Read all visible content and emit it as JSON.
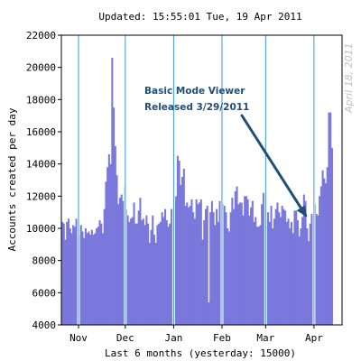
{
  "chart_data": {
    "type": "bar",
    "title": "Updated: 15:55:01 Tue, 19 Apr 2011",
    "xlabel": "Last 6 months (yesterday: 15000)",
    "ylabel": "Accounts created per day",
    "ylim": [
      4000,
      22000
    ],
    "yticks": [
      4000,
      6000,
      8000,
      10000,
      12000,
      14000,
      16000,
      18000,
      20000,
      22000
    ],
    "xlim": [
      "2010-10-21",
      "2011-04-18"
    ],
    "month_ticks": [
      {
        "label": "Nov",
        "date": "2010-11-01"
      },
      {
        "label": "Dec",
        "date": "2010-12-01"
      },
      {
        "label": "Jan",
        "date": "2011-01-01"
      },
      {
        "label": "Feb",
        "date": "2011-02-01"
      },
      {
        "label": "Mar",
        "date": "2011-03-01"
      },
      {
        "label": "Apr",
        "date": "2011-04-01"
      }
    ],
    "colors": {
      "bar": "#7b78dc",
      "month_line": "#3a9ad0",
      "annotation": "#1f4e79",
      "watermark": "#b9c2cf"
    },
    "annotation": {
      "lines": [
        "Basic Mode Viewer",
        "Released 3/29/2011"
      ],
      "target_date": "2011-03-29",
      "target_value": 10800
    },
    "watermark_text": "April 18, 2011",
    "start_date": "2010-10-21",
    "values": [
      10400,
      10300,
      9300,
      10400,
      10600,
      10000,
      9700,
      10200,
      10100,
      10600,
      10400,
      9600,
      10200,
      9800,
      9400,
      10000,
      9700,
      9800,
      9600,
      9900,
      9600,
      9700,
      10000,
      10100,
      10500,
      10300,
      9700,
      11200,
      12900,
      13800,
      14600,
      14000,
      20600,
      17500,
      15100,
      13300,
      11500,
      11900,
      12100,
      11700,
      12600,
      11200,
      10800,
      10400,
      10600,
      10700,
      11600,
      10300,
      10300,
      11100,
      11900,
      10500,
      10600,
      10200,
      10800,
      10300,
      9100,
      9900,
      10800,
      9600,
      9100,
      10200,
      10300,
      10400,
      11000,
      10700,
      11200,
      10500,
      10100,
      10300,
      11200,
      10200,
      11700,
      12000,
      14500,
      14200,
      12700,
      13200,
      13700,
      11400,
      11600,
      11300,
      11400,
      11800,
      11000,
      10600,
      11800,
      11500,
      11600,
      11800,
      9300,
      10500,
      11200,
      11400,
      5400,
      11000,
      11700,
      11000,
      10200,
      11200,
      10400,
      11700,
      11200,
      11500,
      11400,
      11000,
      10000,
      9800,
      11000,
      11900,
      11200,
      12300,
      12600,
      11500,
      11600,
      11600,
      10800,
      12000,
      12000,
      11800,
      10800,
      11300,
      11700,
      10400,
      10700,
      10100,
      10100,
      10200,
      11500,
      12200,
      11400,
      10600,
      11000,
      10400,
      11400,
      10000,
      10600,
      11200,
      11600,
      11000,
      10700,
      11400,
      11200,
      11100,
      10400,
      10600,
      10000,
      10400,
      9700,
      11100,
      11100,
      10500,
      9500,
      10000,
      10700,
      12100,
      11700,
      10000,
      9200,
      10300,
      10900,
      10600,
      11500,
      10900,
      10800,
      12000,
      12600,
      13600,
      13100,
      12800,
      13800,
      17200,
      17200,
      15000
    ]
  }
}
